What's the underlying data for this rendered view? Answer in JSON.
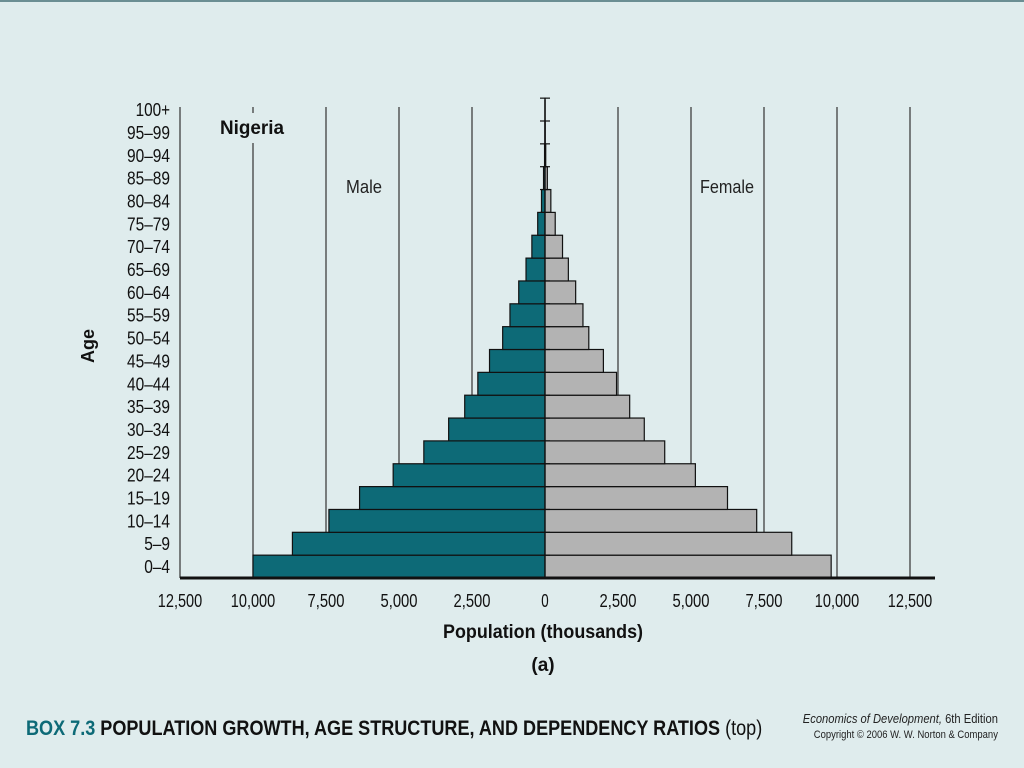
{
  "slide": {
    "box_label": "BOX 7.3",
    "title": "POPULATION GROWTH, AGE STRUCTURE, AND DEPENDENCY RATIOS",
    "title_suffix": "(top)",
    "book_title": "Economics of Development,",
    "edition": "6th Edition",
    "copyright": "Copyright © 2006 W. W. Norton & Company"
  },
  "chart_data": {
    "type": "bar",
    "orientation": "horizontal-pyramid",
    "title": "Nigeria",
    "panel_label": "(a)",
    "xlabel": "Population (thousands)",
    "ylabel": "Age",
    "xlim": [
      -12500,
      12500
    ],
    "x_ticks": [
      -12500,
      -10000,
      -7500,
      -5000,
      -2500,
      0,
      2500,
      5000,
      7500,
      10000,
      12500
    ],
    "x_tick_labels": [
      "12,500",
      "10,000",
      "7,500",
      "5,000",
      "2,500",
      "0",
      "2,500",
      "5,000",
      "7,500",
      "10,000",
      "12,500"
    ],
    "grid": true,
    "categories": [
      "0–4",
      "5–9",
      "10–14",
      "15–19",
      "20–24",
      "25–29",
      "30–34",
      "35–39",
      "40–44",
      "45–49",
      "50–54",
      "55–59",
      "60–64",
      "65–69",
      "70–74",
      "75–79",
      "80–84",
      "85–89",
      "90–94",
      "95–99",
      "100+"
    ],
    "series": [
      {
        "name": "Male",
        "color": "#0d6a77",
        "values": [
          10000,
          8650,
          7400,
          6350,
          5200,
          4150,
          3300,
          2750,
          2300,
          1900,
          1450,
          1200,
          900,
          650,
          450,
          250,
          120,
          50,
          15,
          5,
          2
        ]
      },
      {
        "name": "Female",
        "color": "#b3b3b3",
        "values": [
          9800,
          8450,
          7250,
          6250,
          5150,
          4100,
          3400,
          2900,
          2450,
          2000,
          1500,
          1300,
          1050,
          800,
          600,
          350,
          200,
          80,
          25,
          8,
          3
        ]
      }
    ]
  }
}
